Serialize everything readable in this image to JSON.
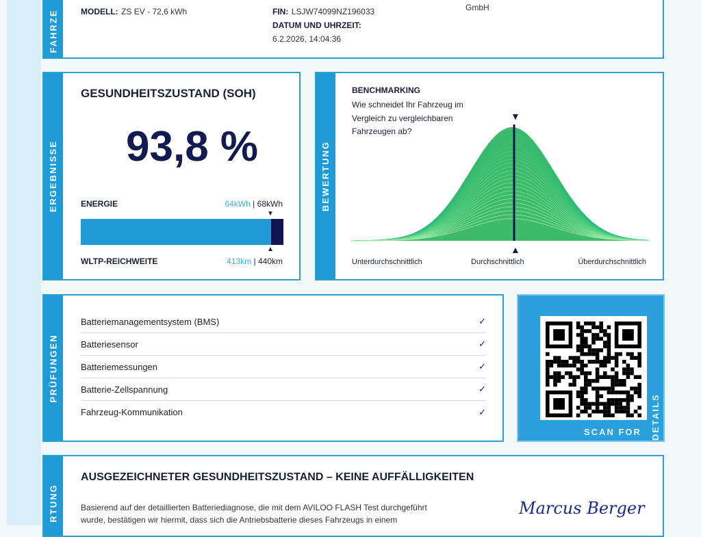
{
  "vehicle": {
    "section_label": "FAHRZE",
    "model_label": "MODELL:",
    "model_value": "ZS EV - 72,6 kWh",
    "fin_label": "FIN:",
    "fin_value": "LSJW74099NZ196033",
    "datetime_label": "DATUM UND UHRZEIT:",
    "datetime_value": "6.2.2026, 14:04:36",
    "company_fragment": "GmbH"
  },
  "results": {
    "section_label": "ERGEBNISSE",
    "title": "GESUNDHEITSZUSTAND (SOH)",
    "soh_value": "93,8 %",
    "energy_label": "ENERGIE",
    "energy_current": "64kWh",
    "energy_nominal": "68kWh",
    "range_label": "WLTP-REICHWEITE",
    "range_current": "413km",
    "range_nominal": "440km",
    "bar_fill_percent": 93.8,
    "bar_color": "#1e9ad6",
    "bar_marker_color": "#0f1550"
  },
  "benchmark": {
    "section_label": "BEWERTUNG",
    "title": "BENCHMARKING",
    "question": "Wie schneidet Ihr Fahrzeug im Vergleich zu vergleichbaren Fahrzeugen ab?",
    "label_low": "Unterdurchschnittlich",
    "label_mid": "Durchschnittlich",
    "label_high": "Überdurchschnittlich"
  },
  "checks": {
    "section_label": "PRÜFUNGEN",
    "items": [
      {
        "label": "Batteriemanagementsystem (BMS)",
        "status": "✓"
      },
      {
        "label": "Batteriesensor",
        "status": "✓"
      },
      {
        "label": "Batteriemessungen",
        "status": "✓"
      },
      {
        "label": "Batterie-Zellspannung",
        "status": "✓"
      },
      {
        "label": "Fahrzeug-Kommunikation",
        "status": "✓"
      }
    ]
  },
  "qr": {
    "scan_label": "SCAN FOR",
    "details_label": "DETAILS"
  },
  "summary": {
    "section_label": "RTUNG",
    "headline": "AUSGEZEICHNETER GESUNDHEITSZUSTAND – KEINE AUFFÄLLIGKEITEN",
    "body_line1": "Basierend auf der detaillierten Batteriediagnose, die mit dem AVILOO FLASH Test durchgeführt",
    "body_line2": "wurde, bestätigen wir hiermit, dass sich die Antriebsbatterie dieses Fahrzeugs in einem",
    "signature": "Marcus Berger"
  }
}
